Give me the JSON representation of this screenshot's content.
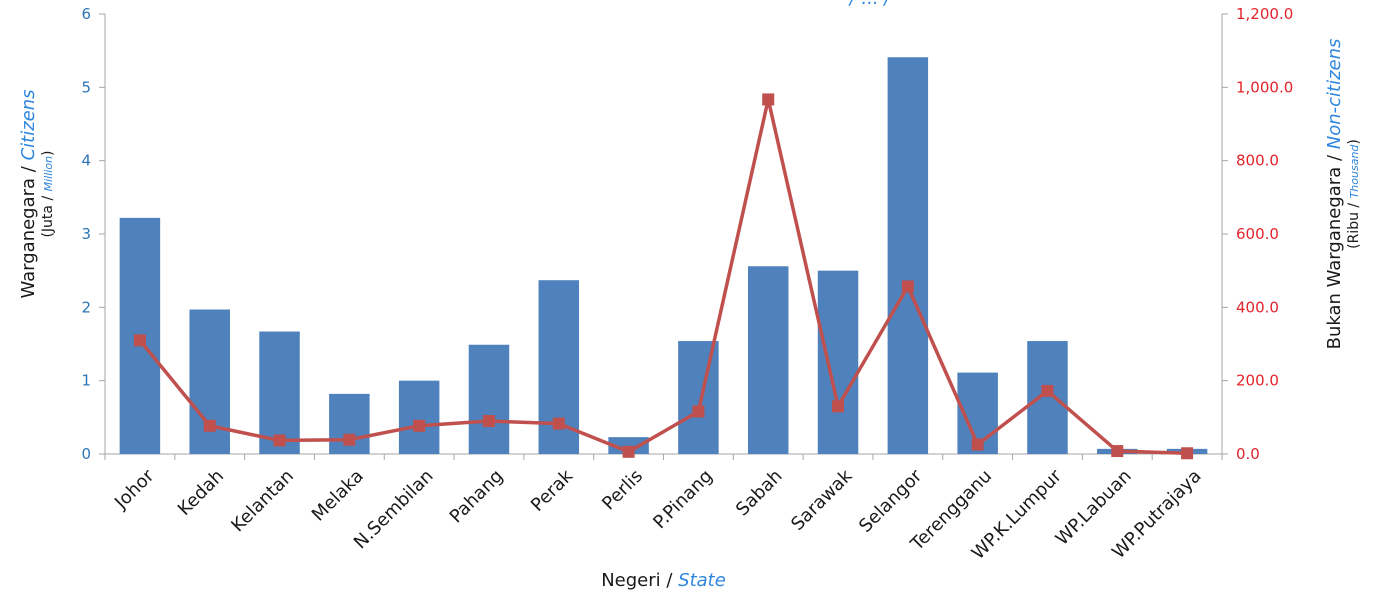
{
  "chart_data": {
    "type": "bar+line",
    "title_partial": "/ ... /",
    "categories": [
      "Johor",
      "Kedah",
      "Kelantan",
      "Melaka",
      "N.Sembilan",
      "Pahang",
      "Perak",
      "Perlis",
      "P.Pinang",
      "Sabah",
      "Sarawak",
      "Selangor",
      "Terengganu",
      "WP.K.Lumpur",
      "WP.Labuan",
      "WP.Putrajaya"
    ],
    "series": [
      {
        "name": "Warganegara / Citizens",
        "type": "bar",
        "axis": "left",
        "values": [
          3.22,
          1.97,
          1.67,
          0.82,
          1.0,
          1.49,
          2.37,
          0.23,
          1.54,
          2.56,
          2.5,
          5.41,
          1.11,
          1.54,
          0.07,
          0.07
        ],
        "color": "#4f81bd"
      },
      {
        "name": "Bukan Warganegara / Non-citizens",
        "type": "line",
        "axis": "right",
        "values": [
          310,
          77,
          37,
          39,
          77,
          90,
          83,
          6,
          116,
          967,
          130,
          457,
          26,
          172,
          8,
          2
        ],
        "color": "#c0504d"
      }
    ],
    "xlabel": {
      "main": "Negeri / ",
      "italic": "State"
    },
    "ylabel_left": {
      "main": "Warganegara / ",
      "italic": "Citizens",
      "sub_pre": "(Juta / ",
      "sub_italic": "Million",
      "sub_post": ")"
    },
    "ylabel_right": {
      "main": "Bukan Warganegara / ",
      "italic": "Non-citizens",
      "sub_pre": "(Ribu / ",
      "sub_italic": "Thousand",
      "sub_post": ")"
    },
    "ylim_left": [
      0,
      6
    ],
    "ylim_right": [
      0,
      1200
    ],
    "left_ticks": [
      "0",
      "1",
      "2",
      "3",
      "4",
      "5",
      "6"
    ],
    "right_ticks": [
      "0.0",
      "200.0",
      "400.0",
      "600.0",
      "800.0",
      "1,000.0",
      "1,200.0"
    ],
    "colors": {
      "left_axis": "#2e75b6",
      "right_axis": "#e3242b",
      "bar": "#4f81bd",
      "line": "#c0504d",
      "axis_line": "#a6a6a6"
    }
  }
}
